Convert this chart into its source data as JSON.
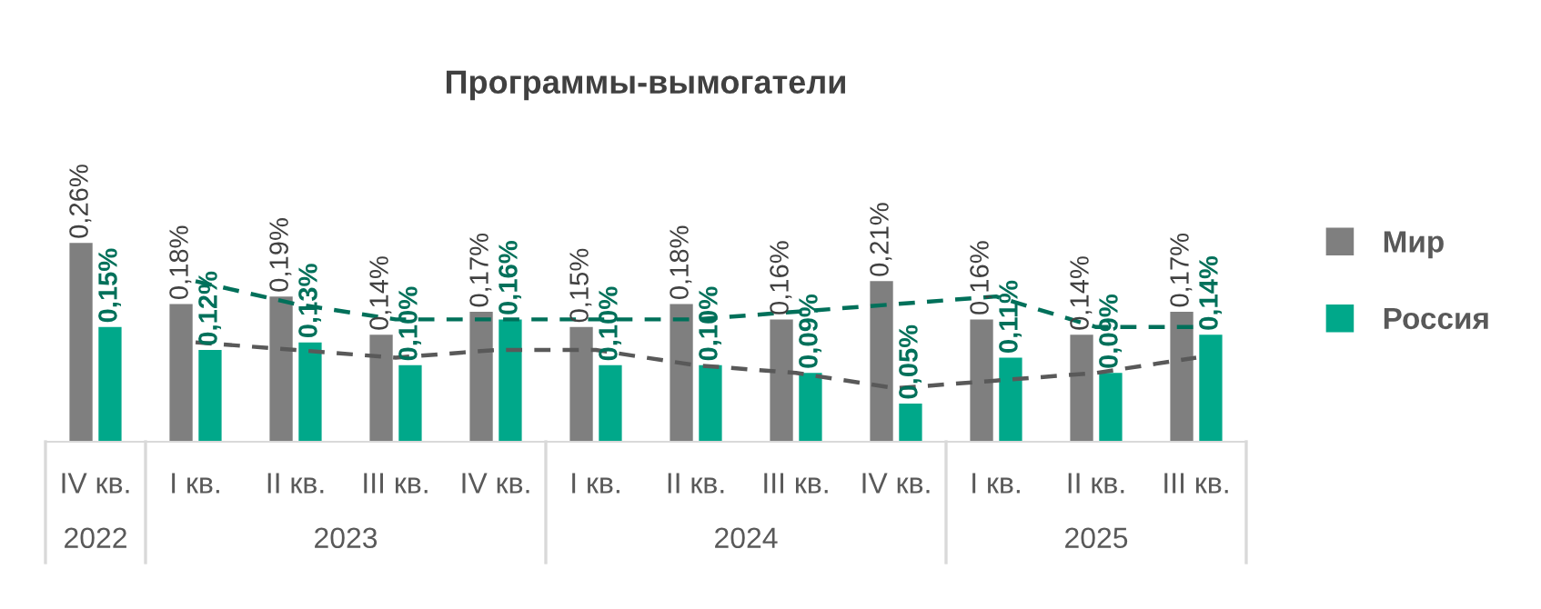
{
  "chart_data": {
    "type": "bar",
    "title": "Программы-вымогатели",
    "categories": [
      "IV кв.",
      "I кв.",
      "II кв.",
      "III кв.",
      "IV кв.",
      "I кв.",
      "II кв.",
      "III кв.",
      "IV кв.",
      "I кв.",
      "II кв.",
      "III кв."
    ],
    "series": [
      {
        "name": "Мир",
        "color": "#7f7f7f",
        "values": [
          0.26,
          0.18,
          0.19,
          0.14,
          0.17,
          0.15,
          0.18,
          0.16,
          0.21,
          0.16,
          0.14,
          0.17
        ],
        "value_labels": [
          "0,26%",
          "0,18%",
          "0,19%",
          "0,14%",
          "0,17%",
          "0,15%",
          "0,18%",
          "0,16%",
          "0,21%",
          "0,16%",
          "0,14%",
          "0,17%"
        ]
      },
      {
        "name": "Россия",
        "color": "#00a88a",
        "values": [
          0.15,
          0.12,
          0.13,
          0.1,
          0.16,
          0.1,
          0.1,
          0.09,
          0.05,
          0.11,
          0.09,
          0.14
        ],
        "value_labels": [
          "0,15%",
          "0,12%",
          "0,13%",
          "0,10%",
          "0,16%",
          "0,10%",
          "0,10%",
          "0,09%",
          "0,05%",
          "0,11%",
          "0,09%",
          "0,14%"
        ]
      },
      {
        "type": "line",
        "color": "#595959",
        "line_style": "dashed",
        "values": [
          null,
          0.13,
          0.12,
          0.11,
          0.12,
          0.12,
          0.1,
          0.09,
          0.07,
          0.08,
          0.09,
          0.11
        ]
      },
      {
        "type": "line",
        "color": "#00705a",
        "line_style": "dashed",
        "values": [
          null,
          0.21,
          0.18,
          0.16,
          0.16,
          0.16,
          0.16,
          0.17,
          0.18,
          0.19,
          0.15,
          0.15
        ]
      }
    ],
    "annotations": [
      "2022",
      "2023",
      "2024",
      "2025"
    ],
    "legend": "right",
    "grid": false
  }
}
